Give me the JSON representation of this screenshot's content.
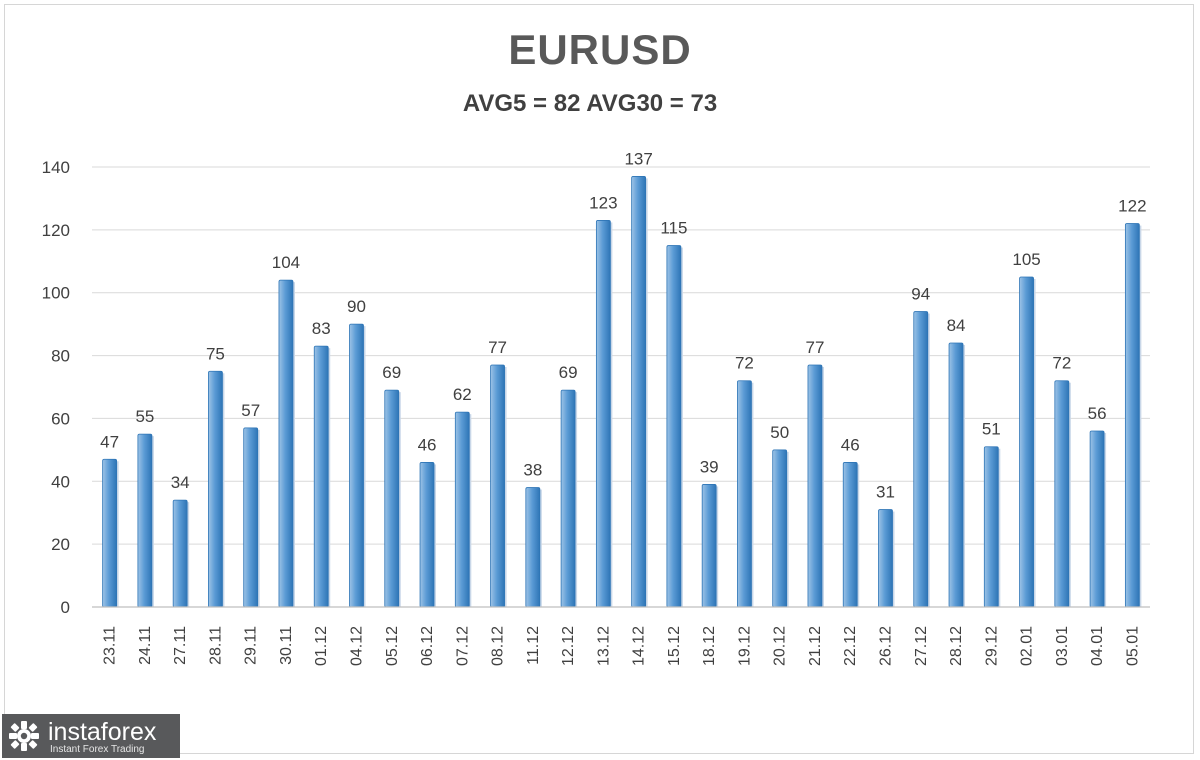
{
  "header": {
    "title": "EURUSD",
    "subtitle": "AVG5 = 82 AVG30 = 73"
  },
  "logo": {
    "name": "instaforex",
    "tagline": "Instant Forex Trading"
  },
  "colors": {
    "bar": "#5b9bd5",
    "bar_dark": "#2e75b6",
    "bar_light": "#9dc3e6",
    "grid": "#d9d9d9",
    "text": "#404040"
  },
  "chart_data": {
    "type": "bar",
    "title": "EURUSD",
    "subtitle": "AVG5 = 82 AVG30 = 73",
    "categories": [
      "23.11",
      "24.11",
      "27.11",
      "28.11",
      "29.11",
      "30.11",
      "01.12",
      "04.12",
      "05.12",
      "06.12",
      "07.12",
      "08.12",
      "11.12",
      "12.12",
      "13.12",
      "14.12",
      "15.12",
      "18.12",
      "19.12",
      "20.12",
      "21.12",
      "22.12",
      "26.12",
      "27.12",
      "28.12",
      "29.12",
      "02.01",
      "03.01",
      "04.01",
      "05.01"
    ],
    "values": [
      47,
      55,
      34,
      75,
      57,
      104,
      83,
      90,
      69,
      46,
      62,
      77,
      38,
      69,
      123,
      137,
      115,
      39,
      72,
      50,
      77,
      46,
      31,
      94,
      84,
      51,
      105,
      72,
      56,
      122
    ],
    "ylim": [
      0,
      140
    ],
    "yticks": [
      0,
      20,
      40,
      60,
      80,
      100,
      120,
      140
    ],
    "grid": true,
    "legend": "none",
    "data_labels": true
  }
}
